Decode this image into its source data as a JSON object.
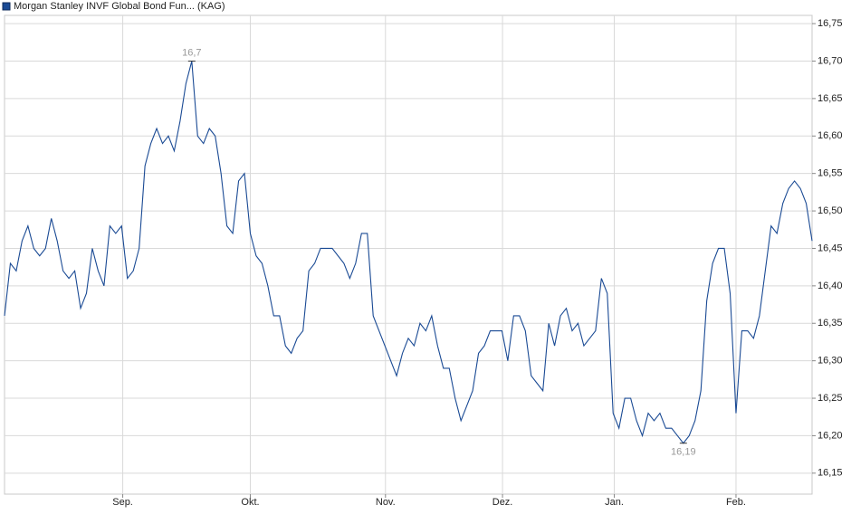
{
  "chart_data": {
    "type": "line",
    "title": "Morgan Stanley INVF Global Bond Fun... (KAG)",
    "series": [
      {
        "name": "Morgan Stanley INVF Global Bond Fun... (KAG)",
        "color": "#1a4a94",
        "values": [
          16.36,
          16.43,
          16.42,
          16.46,
          16.48,
          16.45,
          16.44,
          16.45,
          16.49,
          16.46,
          16.42,
          16.41,
          16.42,
          16.37,
          16.39,
          16.45,
          16.42,
          16.4,
          16.48,
          16.47,
          16.48,
          16.41,
          16.42,
          16.45,
          16.56,
          16.59,
          16.61,
          16.59,
          16.6,
          16.58,
          16.62,
          16.67,
          16.7,
          16.6,
          16.59,
          16.61,
          16.6,
          16.55,
          16.48,
          16.47,
          16.54,
          16.55,
          16.47,
          16.44,
          16.43,
          16.4,
          16.36,
          16.36,
          16.32,
          16.31,
          16.33,
          16.34,
          16.42,
          16.43,
          16.45,
          16.45,
          16.45,
          16.44,
          16.43,
          16.41,
          16.43,
          16.47,
          16.47,
          16.36,
          16.34,
          16.32,
          16.3,
          16.28,
          16.31,
          16.33,
          16.32,
          16.35,
          16.34,
          16.36,
          16.32,
          16.29,
          16.29,
          16.25,
          16.22,
          16.24,
          16.26,
          16.31,
          16.32,
          16.34,
          16.34,
          16.34,
          16.3,
          16.36,
          16.36,
          16.34,
          16.28,
          16.27,
          16.26,
          16.35,
          16.32,
          16.36,
          16.37,
          16.34,
          16.35,
          16.32,
          16.33,
          16.34,
          16.41,
          16.39,
          16.23,
          16.21,
          16.25,
          16.25,
          16.22,
          16.2,
          16.23,
          16.22,
          16.23,
          16.21,
          16.21,
          16.2,
          16.19,
          16.2,
          16.22,
          16.26,
          16.38,
          16.43,
          16.45,
          16.45,
          16.39,
          16.23,
          16.34,
          16.34,
          16.33,
          16.36,
          16.42,
          16.48,
          16.47,
          16.51,
          16.53,
          16.54,
          16.53,
          16.51,
          16.46
        ],
        "value_labels": [
          null,
          null,
          null,
          null,
          null,
          null,
          null,
          null,
          null,
          null,
          null,
          null,
          null,
          null,
          null,
          null,
          null,
          null,
          null,
          null,
          null,
          null,
          null,
          null,
          null,
          null,
          null,
          null,
          null,
          null,
          null,
          null,
          "16,7",
          null,
          null,
          null,
          null,
          null,
          null,
          null,
          null,
          null,
          null,
          null,
          null,
          null,
          null,
          null,
          null,
          null,
          null,
          null,
          null,
          null,
          null,
          null,
          null,
          null,
          null,
          null,
          null,
          null,
          null,
          null,
          null,
          null,
          null,
          null,
          null,
          null,
          null,
          null,
          null,
          null,
          null,
          null,
          null,
          null,
          null,
          null,
          null,
          null,
          null,
          null,
          null,
          null,
          null,
          null,
          null,
          null,
          null,
          null,
          null,
          null,
          null,
          null,
          null,
          null,
          null,
          null,
          null,
          null,
          null,
          null,
          null,
          null,
          null,
          null,
          null,
          null,
          null,
          null,
          null,
          null,
          null,
          null,
          "16,19",
          null,
          null,
          null,
          null,
          null,
          null,
          null,
          null,
          null,
          null,
          null,
          null,
          null,
          null,
          null,
          null,
          null,
          null,
          null,
          null,
          null,
          null
        ]
      }
    ],
    "xlim": [
      0,
      138
    ],
    "xticks": [
      {
        "value": 20.2,
        "label": "Sep."
      },
      {
        "value": 42.0,
        "label": "Okt."
      },
      {
        "value": 65.1,
        "label": "Nov."
      },
      {
        "value": 85.1,
        "label": "Dez."
      },
      {
        "value": 104.2,
        "label": "Jan."
      },
      {
        "value": 125.0,
        "label": "Feb."
      }
    ],
    "ylim": [
      16.122,
      16.761
    ],
    "yticks": [
      {
        "value": 16.15,
        "label": "16,15"
      },
      {
        "value": 16.2,
        "label": "16,20"
      },
      {
        "value": 16.25,
        "label": "16,25"
      },
      {
        "value": 16.3,
        "label": "16,30"
      },
      {
        "value": 16.35,
        "label": "16,35"
      },
      {
        "value": 16.4,
        "label": "16,40"
      },
      {
        "value": 16.45,
        "label": "16,45"
      },
      {
        "value": 16.5,
        "label": "16,50"
      },
      {
        "value": 16.55,
        "label": "16,55"
      },
      {
        "value": 16.6,
        "label": "16,60"
      },
      {
        "value": 16.65,
        "label": "16,65"
      },
      {
        "value": 16.7,
        "label": "16,70"
      },
      {
        "value": 16.75,
        "label": "16,75"
      }
    ],
    "grid": true
  }
}
